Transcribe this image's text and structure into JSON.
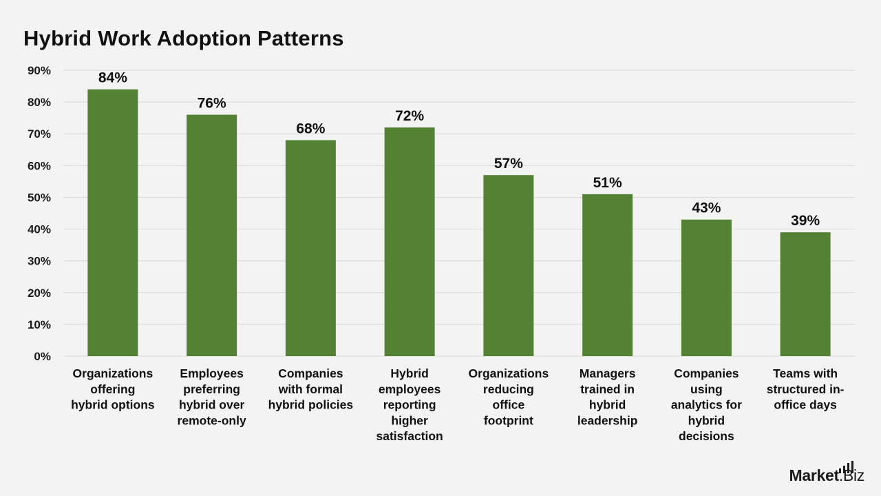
{
  "chart_data": {
    "type": "bar",
    "title": "Hybrid Work Adoption Patterns",
    "categories": [
      [
        "Organizations",
        "offering",
        "hybrid options"
      ],
      [
        "Employees",
        "preferring",
        "hybrid over",
        "remote-only"
      ],
      [
        "Companies",
        "with formal",
        "hybrid policies"
      ],
      [
        "Hybrid",
        "employees",
        "reporting",
        "higher",
        "satisfaction"
      ],
      [
        "Organizations",
        "reducing",
        "office",
        "footprint"
      ],
      [
        "Managers",
        "trained in",
        "hybrid",
        "leadership"
      ],
      [
        "Companies",
        "using",
        "analytics for",
        "hybrid",
        "decisions"
      ],
      [
        "Teams with",
        "structured in-",
        "office days"
      ]
    ],
    "values": [
      84,
      76,
      68,
      72,
      57,
      51,
      43,
      39
    ],
    "value_labels": [
      "84%",
      "76%",
      "68%",
      "72%",
      "57%",
      "51%",
      "43%",
      "39%"
    ],
    "y_ticks": [
      "0%",
      "10%",
      "20%",
      "30%",
      "40%",
      "50%",
      "60%",
      "70%",
      "80%",
      "90%"
    ],
    "ylim": [
      0,
      90
    ],
    "grid": true,
    "bar_color": "#548235",
    "gridline_color": "#d9d9d9"
  },
  "brand": {
    "part1": "Market",
    "part2": ".Biz"
  }
}
